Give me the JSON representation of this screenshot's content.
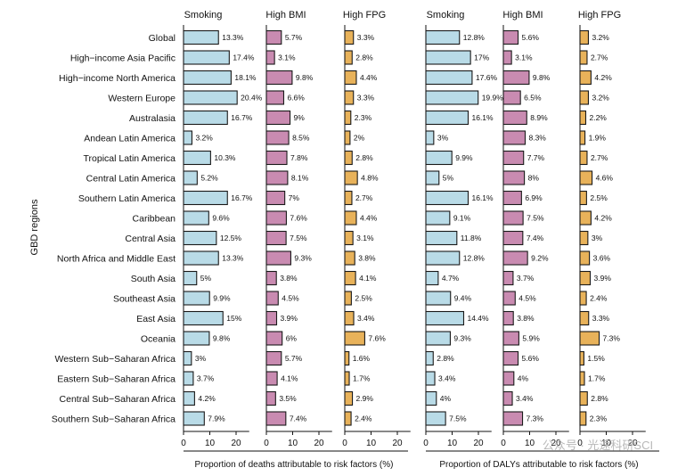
{
  "chart_data": {
    "type": "bar",
    "orientation": "horizontal",
    "ylabel": "GBD regions",
    "categories": [
      "Global",
      "High−income Asia Pacific",
      "High−income North America",
      "Western Europe",
      "Australasia",
      "Andean Latin America",
      "Tropical Latin America",
      "Central Latin America",
      "Southern Latin America",
      "Caribbean",
      "Central Asia",
      "North Africa and Middle East",
      "South Asia",
      "Southeast Asia",
      "East Asia",
      "Oceania",
      "Western Sub−Saharan Africa",
      "Eastern Sub−Saharan Africa",
      "Central Sub−Saharan Africa",
      "Southern Sub−Saharan Africa"
    ],
    "panels": [
      {
        "xlabel": "Proportion of deaths attributable to risk factors (%)",
        "series": [
          {
            "name": "Smoking",
            "color": "#b9dbe7",
            "xlim": [
              0,
              25
            ],
            "ticks": [
              0,
              10,
              20
            ],
            "values": [
              13.3,
              17.4,
              18.1,
              20.4,
              16.7,
              3.2,
              10.3,
              5.2,
              16.7,
              9.6,
              12.5,
              13.3,
              5,
              9.9,
              15,
              9.8,
              3,
              3.7,
              4.2,
              7.9
            ],
            "labels": [
              "13.3%",
              "17.4%",
              "18.1%",
              "20.4%",
              "16.7%",
              "3.2%",
              "10.3%",
              "5.2%",
              "16.7%",
              "9.6%",
              "12.5%",
              "13.3%",
              "5%",
              "9.9%",
              "15%",
              "9.8%",
              "3%",
              "3.7%",
              "4.2%",
              "7.9%"
            ]
          },
          {
            "name": "High BMI",
            "color": "#c98bb1",
            "xlim": [
              0,
              25
            ],
            "ticks": [
              0,
              10,
              20
            ],
            "values": [
              5.7,
              3.1,
              9.8,
              6.6,
              9,
              8.5,
              7.8,
              8.1,
              7,
              7.6,
              7.5,
              9.3,
              3.8,
              4.5,
              3.9,
              6,
              5.7,
              4.1,
              3.5,
              7.4
            ],
            "labels": [
              "5.7%",
              "3.1%",
              "9.8%",
              "6.6%",
              "9%",
              "8.5%",
              "7.8%",
              "8.1%",
              "7%",
              "7.6%",
              "7.5%",
              "9.3%",
              "3.8%",
              "4.5%",
              "3.9%",
              "6%",
              "5.7%",
              "4.1%",
              "3.5%",
              "7.4%"
            ]
          },
          {
            "name": "High FPG",
            "color": "#e8b25a",
            "xlim": [
              0,
              25
            ],
            "ticks": [
              0,
              10,
              20
            ],
            "values": [
              3.3,
              2.8,
              4.4,
              3.3,
              2.3,
              2,
              2.8,
              4.8,
              2.7,
              4.4,
              3.1,
              3.8,
              4.1,
              2.5,
              3.4,
              7.6,
              1.6,
              1.7,
              2.9,
              2.4
            ],
            "labels": [
              "3.3%",
              "2.8%",
              "4.4%",
              "3.3%",
              "2.3%",
              "2%",
              "2.8%",
              "4.8%",
              "2.7%",
              "4.4%",
              "3.1%",
              "3.8%",
              "4.1%",
              "2.5%",
              "3.4%",
              "7.6%",
              "1.6%",
              "1.7%",
              "2.9%",
              "2.4%"
            ]
          }
        ]
      },
      {
        "xlabel": "Proportion of DALYs attributable to risk factors (%)",
        "series": [
          {
            "name": "Smoking",
            "color": "#b9dbe7",
            "xlim": [
              0,
              25
            ],
            "ticks": [
              0,
              10,
              20
            ],
            "values": [
              12.8,
              17,
              17.6,
              19.9,
              16.1,
              3,
              9.9,
              5,
              16.1,
              9.1,
              11.8,
              12.8,
              4.7,
              9.4,
              14.4,
              9.3,
              2.8,
              3.4,
              4,
              7.5
            ],
            "labels": [
              "12.8%",
              "17%",
              "17.6%",
              "19.9%",
              "16.1%",
              "3%",
              "9.9%",
              "5%",
              "16.1%",
              "9.1%",
              "11.8%",
              "12.8%",
              "4.7%",
              "9.4%",
              "14.4%",
              "9.3%",
              "2.8%",
              "3.4%",
              "4%",
              "7.5%"
            ]
          },
          {
            "name": "High BMI",
            "color": "#c98bb1",
            "xlim": [
              0,
              25
            ],
            "ticks": [
              0,
              10,
              20
            ],
            "values": [
              5.6,
              3.1,
              9.8,
              6.5,
              8.9,
              8.3,
              7.7,
              8,
              6.9,
              7.5,
              7.4,
              9.2,
              3.7,
              4.5,
              3.8,
              5.9,
              5.6,
              4,
              3.4,
              7.3
            ],
            "labels": [
              "5.6%",
              "3.1%",
              "9.8%",
              "6.5%",
              "8.9%",
              "8.3%",
              "7.7%",
              "8%",
              "6.9%",
              "7.5%",
              "7.4%",
              "9.2%",
              "3.7%",
              "4.5%",
              "3.8%",
              "5.9%",
              "5.6%",
              "4%",
              "3.4%",
              "7.3%"
            ]
          },
          {
            "name": "High FPG",
            "color": "#e8b25a",
            "xlim": [
              0,
              25
            ],
            "ticks": [
              0,
              10,
              20
            ],
            "values": [
              3.2,
              2.7,
              4.2,
              3.2,
              2.2,
              1.9,
              2.7,
              4.6,
              2.5,
              4.2,
              3,
              3.6,
              3.9,
              2.4,
              3.3,
              7.3,
              1.5,
              1.7,
              2.8,
              2.3
            ],
            "labels": [
              "3.2%",
              "2.7%",
              "4.2%",
              "3.2%",
              "2.2%",
              "1.9%",
              "2.7%",
              "4.6%",
              "2.5%",
              "4.2%",
              "3%",
              "3.6%",
              "3.9%",
              "2.4%",
              "3.3%",
              "7.3%",
              "1.5%",
              "1.7%",
              "2.8%",
              "2.3%"
            ]
          }
        ]
      }
    ]
  },
  "watermark": "公众号 · 光速科研SCI"
}
